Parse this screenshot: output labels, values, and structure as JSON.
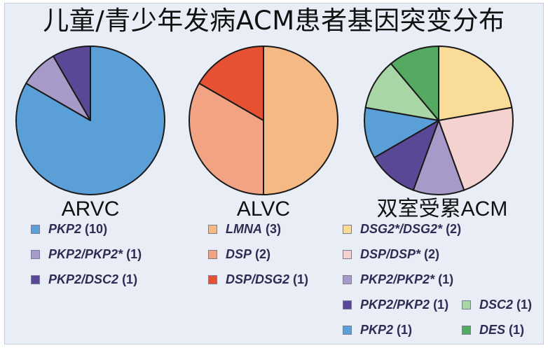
{
  "title": "儿童/青少年发病ACM患者基因突变分布",
  "colors": {
    "background": "#e8edf6",
    "border": "#c6cede",
    "legend_text": "#2d2c52",
    "slice_outline": "#1a1a1a"
  },
  "chart_data": [
    {
      "type": "pie",
      "title": "ARVC",
      "slices": [
        {
          "label": "PKP2",
          "count": "(10)",
          "value": 10,
          "color": "#5a9fd8"
        },
        {
          "label": "PKP2/PKP2*",
          "count": "(1)",
          "value": 1,
          "color": "#a79ac8"
        },
        {
          "label": "PKP2/DSC2",
          "count": "(1)",
          "value": 1,
          "color": "#5a4796"
        }
      ]
    },
    {
      "type": "pie",
      "title": "ALVC",
      "slices": [
        {
          "label": "LMNA",
          "count": "(3)",
          "value": 3,
          "color": "#f5b986"
        },
        {
          "label": "DSP",
          "count": "(2)",
          "value": 2,
          "color": "#f2a383"
        },
        {
          "label": "DSP/DSG2",
          "count": "(1)",
          "value": 1,
          "color": "#e65133"
        }
      ]
    },
    {
      "type": "pie",
      "title": "双室受累ACM",
      "slices": [
        {
          "label": "DSG2*/DSG2*",
          "count": "(2)",
          "value": 2,
          "color": "#f9dc97"
        },
        {
          "label": "DSP/DSP*",
          "count": "(2)",
          "value": 2,
          "color": "#f4d2d0"
        },
        {
          "label": "PKP2/PKP2*",
          "count": "(1)",
          "value": 1,
          "color": "#a79ac8"
        },
        {
          "label": "PKP2/PKP2",
          "count": "(1)",
          "value": 1,
          "color": "#5a4796"
        },
        {
          "label": "PKP2",
          "count": "(1)",
          "value": 1,
          "color": "#5a9fd8"
        },
        {
          "label": "DSC2",
          "count": "(1)",
          "value": 1,
          "color": "#a9d6a6"
        },
        {
          "label": "DES",
          "count": "(1)",
          "value": 1,
          "color": "#55aa62"
        }
      ]
    }
  ]
}
